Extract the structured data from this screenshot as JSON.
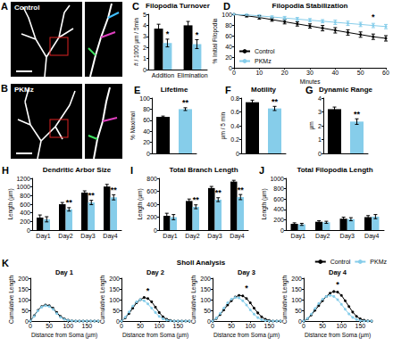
{
  "images": [
    {
      "panel": "A",
      "label": "Control"
    },
    {
      "panel": "B",
      "label": "PKMz"
    }
  ],
  "chart_data": [
    {
      "panel": "C",
      "type": "bar",
      "title": "Filopodia Turnover",
      "ylabel": "# / 1000 µm / 5min",
      "categories": [
        "Addition",
        "Elimination"
      ],
      "series": [
        {
          "color": "#000000",
          "values": [
            3.7,
            4.0
          ],
          "errors": [
            0.4,
            0.35
          ]
        },
        {
          "color": "#86cdea",
          "values": [
            2.4,
            2.3
          ],
          "errors": [
            0.35,
            0.4
          ]
        }
      ],
      "ylim": [
        0,
        5
      ],
      "yticks": [
        0,
        1,
        2,
        3,
        4,
        5
      ],
      "annotations": [
        {
          "text": "*",
          "index": 0
        },
        {
          "text": "*",
          "index": 1
        }
      ]
    },
    {
      "panel": "D",
      "type": "line",
      "title": "Filopodia Stabilization",
      "xlabel": "Minutes",
      "ylabel": "% Initial Filopodia",
      "x": [
        0,
        5,
        10,
        15,
        20,
        25,
        30,
        35,
        40,
        45,
        50,
        55,
        60
      ],
      "xlim": [
        0,
        60
      ],
      "xticks": [
        0,
        10,
        20,
        30,
        40,
        50,
        60
      ],
      "ylim": [
        0,
        100
      ],
      "yticks": [
        0,
        20,
        40,
        60,
        80,
        100
      ],
      "legend": "lower left",
      "series": [
        {
          "name": "Control",
          "color": "#000000",
          "marker": "circle",
          "line_style": "solid",
          "values": [
            100,
            97,
            94,
            90,
            86,
            82,
            78,
            74,
            70,
            66,
            62,
            58,
            55
          ],
          "errors": [
            0,
            2,
            3,
            3,
            4,
            4,
            4,
            5,
            5,
            5,
            5,
            5,
            5
          ]
        },
        {
          "name": "PKMz",
          "color": "#86cdea",
          "marker": "circle",
          "line_style": "solid",
          "values": [
            100,
            99,
            97,
            95,
            93,
            91,
            89,
            87,
            85,
            83,
            81,
            79,
            77
          ],
          "errors": [
            0,
            1,
            2,
            2,
            3,
            3,
            3,
            3,
            4,
            4,
            4,
            4,
            4
          ]
        }
      ],
      "annotations": [
        {
          "text": "*",
          "x": 55,
          "y": 86
        }
      ]
    },
    {
      "panel": "E",
      "type": "bar",
      "title": "Lifetime",
      "ylabel": "% Maximal",
      "categories": [
        null,
        null
      ],
      "values": [
        66,
        80
      ],
      "errors": [
        1.5,
        2.5
      ],
      "colors": [
        "#000000",
        "#86cdea"
      ],
      "ylim": [
        0,
        100
      ],
      "yticks": [
        0,
        20,
        40,
        60,
        80,
        100
      ],
      "tick_labels": "y",
      "annotations": [
        {
          "text": "**",
          "index": 1
        }
      ]
    },
    {
      "panel": "F",
      "type": "bar",
      "title": "Motility",
      "ylabel": "µm / 5 min",
      "categories": [
        null,
        null
      ],
      "values": [
        0.74,
        0.65
      ],
      "errors": [
        0.03,
        0.03
      ],
      "colors": [
        "#000000",
        "#86cdea"
      ],
      "ylim": [
        0,
        0.8
      ],
      "yticks": [
        0,
        0.2,
        0.4,
        0.6,
        0.8
      ],
      "tick_labels": "y",
      "annotations": [
        {
          "text": "**",
          "index": 1
        }
      ]
    },
    {
      "panel": "G",
      "type": "bar",
      "title": "Dynamic Range",
      "ylabel": "µm",
      "categories": [
        null,
        null
      ],
      "values": [
        3.2,
        2.3
      ],
      "errors": [
        0.15,
        0.2
      ],
      "colors": [
        "#000000",
        "#86cdea"
      ],
      "ylim": [
        0,
        4
      ],
      "yticks": [
        0,
        1,
        2,
        3,
        4
      ],
      "tick_labels": "y",
      "annotations": [
        {
          "text": "**",
          "index": 1
        }
      ]
    },
    {
      "panel": "H",
      "type": "bar",
      "title": "Dendritic Arbor Size",
      "ylabel": "Length (µm)",
      "categories": [
        "Day1",
        "Day2",
        "Day3",
        "Day4"
      ],
      "series": [
        {
          "color": "#000000",
          "values": [
            290,
            600,
            870,
            1010
          ],
          "errors": [
            60,
            40,
            40,
            50
          ]
        },
        {
          "color": "#86cdea",
          "values": [
            250,
            480,
            640,
            760
          ],
          "errors": [
            60,
            40,
            50,
            60
          ]
        }
      ],
      "ylim": [
        0,
        1200
      ],
      "yticks": [
        0,
        200,
        400,
        600,
        800,
        1000,
        1200
      ],
      "annotations": [
        {
          "text": "**",
          "index": 1
        },
        {
          "text": "**",
          "index": 2
        },
        {
          "text": "**",
          "index": 3
        }
      ]
    },
    {
      "panel": "I",
      "type": "bar",
      "title": "Total Branch Length",
      "ylabel": "Length (µm)",
      "categories": [
        "Day1",
        "Day2",
        "Day3",
        "Day4"
      ],
      "series": [
        {
          "color": "#000000",
          "values": [
            220,
            450,
            650,
            750
          ],
          "errors": [
            40,
            30,
            25,
            20
          ]
        },
        {
          "color": "#86cdea",
          "values": [
            200,
            360,
            470,
            510
          ],
          "errors": [
            40,
            30,
            30,
            40
          ]
        }
      ],
      "ylim": [
        0,
        800
      ],
      "yticks": [
        0,
        200,
        400,
        600,
        800
      ],
      "annotations": [
        {
          "text": "**",
          "index": 1
        },
        {
          "text": "**",
          "index": 2
        },
        {
          "text": "**",
          "index": 3
        }
      ]
    },
    {
      "panel": "J",
      "type": "bar",
      "title": "Total Filopodia Length",
      "ylabel": "Length (µm)",
      "categories": [
        "Day1",
        "Day2",
        "Day3",
        "Day4"
      ],
      "series": [
        {
          "color": "#000000",
          "values": [
            120,
            160,
            220,
            250
          ],
          "errors": [
            20,
            20,
            30,
            30
          ]
        },
        {
          "color": "#86cdea",
          "values": [
            110,
            150,
            210,
            260
          ],
          "errors": [
            20,
            20,
            30,
            40
          ]
        }
      ],
      "ylim": [
        0,
        1000
      ],
      "yticks": [
        0,
        200,
        400,
        600,
        800,
        1000
      ]
    },
    {
      "panel": "K",
      "type": "line",
      "title": "Sholl Analysis",
      "xlabel": "Distance from Soma (µm)",
      "ylabel": "Cumulative Length",
      "x": [
        0,
        10,
        20,
        30,
        40,
        50,
        60,
        70,
        80,
        90,
        100,
        110,
        120,
        130,
        140,
        150,
        160,
        170,
        180
      ],
      "xlim": [
        0,
        180
      ],
      "xticks": [
        0,
        50,
        100,
        150
      ],
      "ylim": [
        0,
        200
      ],
      "yticks": [
        0,
        50,
        100,
        150,
        200
      ],
      "legend": "upper right",
      "subplots": [
        {
          "title": "Day 1",
          "series": [
            {
              "name": "Control",
              "color": "#000000",
              "marker": "circle",
              "line_style": "solid",
              "values": [
                0,
                25,
                50,
                68,
                75,
                72,
                60,
                40,
                22,
                10,
                4,
                1,
                0,
                0,
                0,
                0,
                0,
                0,
                0
              ]
            },
            {
              "name": "PKMz",
              "color": "#86cdea",
              "marker": "circle",
              "line_style": "solid",
              "values": [
                0,
                22,
                48,
                65,
                72,
                68,
                55,
                35,
                18,
                8,
                3,
                1,
                0,
                0,
                0,
                0,
                0,
                0,
                0
              ]
            }
          ]
        },
        {
          "title": "Day 2",
          "series": [
            {
              "name": "Control",
              "color": "#000000",
              "marker": "circle",
              "line_style": "solid",
              "values": [
                0,
                15,
                35,
                60,
                85,
                100,
                110,
                105,
                90,
                65,
                40,
                20,
                8,
                3,
                0,
                0,
                0,
                0,
                0
              ]
            },
            {
              "name": "PKMz",
              "color": "#86cdea",
              "marker": "circle",
              "line_style": "solid",
              "values": [
                0,
                18,
                42,
                70,
                90,
                100,
                95,
                80,
                60,
                40,
                22,
                10,
                4,
                1,
                0,
                0,
                0,
                0,
                0
              ]
            }
          ],
          "annotations": [
            {
              "text": "*",
              "x": 70,
              "y": 120
            }
          ]
        },
        {
          "title": "Day 3",
          "series": [
            {
              "name": "Control",
              "color": "#000000",
              "marker": "circle",
              "line_style": "solid",
              "values": [
                0,
                12,
                30,
                52,
                75,
                95,
                112,
                120,
                118,
                105,
                85,
                60,
                38,
                20,
                8,
                3,
                0,
                0,
                0
              ]
            },
            {
              "name": "PKMz",
              "color": "#86cdea",
              "marker": "circle",
              "line_style": "solid",
              "values": [
                0,
                14,
                35,
                60,
                85,
                102,
                110,
                108,
                95,
                75,
                52,
                32,
                16,
                6,
                2,
                0,
                0,
                0,
                0
              ]
            }
          ],
          "annotations": [
            {
              "text": "*",
              "x": 90,
              "y": 130
            }
          ]
        },
        {
          "title": "Day 4",
          "series": [
            {
              "name": "Control",
              "color": "#000000",
              "marker": "circle",
              "line_style": "solid",
              "values": [
                0,
                10,
                28,
                50,
                72,
                95,
                115,
                130,
                138,
                135,
                120,
                95,
                68,
                42,
                22,
                10,
                4,
                1,
                0
              ]
            },
            {
              "name": "PKMz",
              "color": "#86cdea",
              "marker": "circle",
              "line_style": "solid",
              "values": [
                0,
                12,
                32,
                58,
                82,
                102,
                115,
                120,
                115,
                100,
                78,
                55,
                33,
                17,
                7,
                2,
                0,
                0,
                0
              ]
            }
          ],
          "annotations": [
            {
              "text": "*",
              "x": 90,
              "y": 150
            }
          ]
        }
      ]
    }
  ]
}
